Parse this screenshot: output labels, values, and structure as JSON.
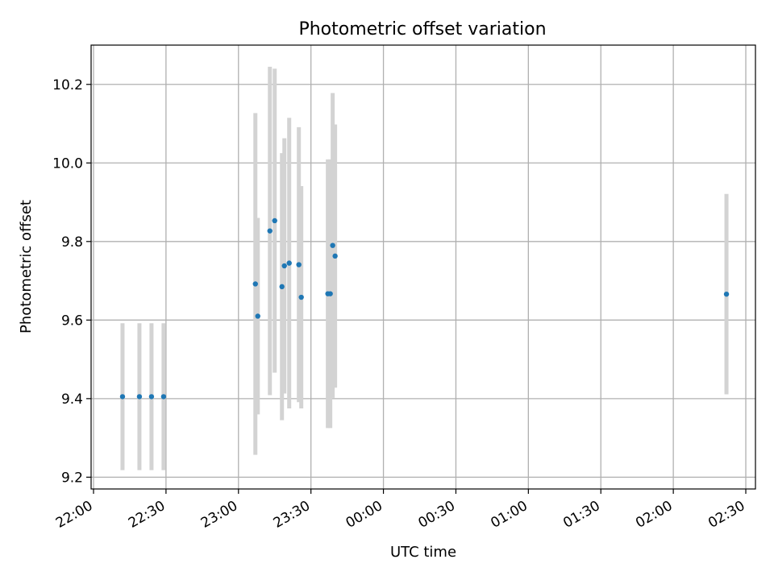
{
  "chart_data": {
    "type": "scatter",
    "title": "Photometric offset variation",
    "xlabel": "UTC time",
    "ylabel": "Photometric offset",
    "x_axis": {
      "kind": "time",
      "range": [
        "21:59",
        "02:34"
      ],
      "ticks": [
        "22:00",
        "22:30",
        "23:00",
        "23:30",
        "00:00",
        "00:30",
        "01:00",
        "01:30",
        "02:00",
        "02:30"
      ]
    },
    "y_axis": {
      "range": [
        9.17,
        10.3
      ],
      "ticks": [
        "9.2",
        "9.4",
        "9.6",
        "9.8",
        "10.0",
        "10.2"
      ]
    },
    "grid": true,
    "legend": "none",
    "colors": {
      "points": "#1f77b4",
      "errorbars": "#d3d3d3",
      "grid": "#b0b0b0"
    },
    "points": [
      {
        "x": "22:12",
        "y": 9.405,
        "err": 0.187
      },
      {
        "x": "22:19",
        "y": 9.405,
        "err": 0.187
      },
      {
        "x": "22:24",
        "y": 9.405,
        "err": 0.187
      },
      {
        "x": "22:29",
        "y": 9.405,
        "err": 0.187
      },
      {
        "x": "23:07",
        "y": 9.692,
        "err": 0.435
      },
      {
        "x": "23:08",
        "y": 9.61,
        "err": 0.25
      },
      {
        "x": "23:13",
        "y": 9.827,
        "err": 0.418
      },
      {
        "x": "23:15",
        "y": 9.853,
        "err": 0.387
      },
      {
        "x": "23:18",
        "y": 9.685,
        "err": 0.34
      },
      {
        "x": "23:19",
        "y": 9.738,
        "err": 0.325
      },
      {
        "x": "23:21",
        "y": 9.745,
        "err": 0.37
      },
      {
        "x": "23:25",
        "y": 9.741,
        "err": 0.35
      },
      {
        "x": "23:26",
        "y": 9.658,
        "err": 0.283
      },
      {
        "x": "23:37",
        "y": 9.667,
        "err": 0.342
      },
      {
        "x": "23:38",
        "y": 9.667,
        "err": 0.342
      },
      {
        "x": "23:39",
        "y": 9.79,
        "err": 0.388
      },
      {
        "x": "23:40",
        "y": 9.763,
        "err": 0.335
      },
      {
        "x": "02:22",
        "y": 9.666,
        "err": 0.255
      }
    ]
  }
}
